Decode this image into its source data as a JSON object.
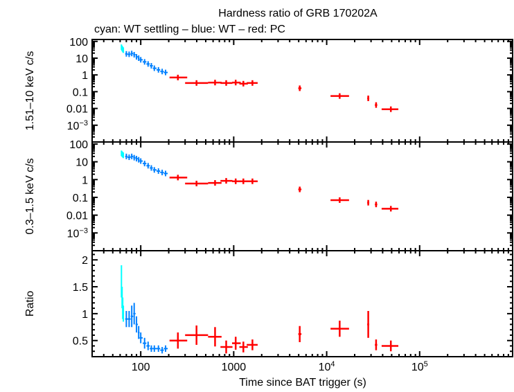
{
  "chart_data": {
    "type": "scatter",
    "title": "Hardness ratio of GRB 170202A",
    "subtitle": "cyan: WT settling – blue: WT – red: PC",
    "xlabel": "Time since BAT trigger (s)",
    "xscale": "log",
    "xlim": [
      30,
      1000000
    ],
    "xticks": [
      {
        "v": 100,
        "label": "100"
      },
      {
        "v": 1000,
        "label": "1000"
      },
      {
        "v": 10000,
        "label": "10",
        "sup": "4"
      },
      {
        "v": 100000,
        "label": "10",
        "sup": "5"
      }
    ],
    "colors": {
      "WT settling": "#00ffff",
      "WT": "#0080ff",
      "PC": "#ff0000"
    },
    "panels": [
      {
        "key": "hard",
        "ylabel": "1.51–10 keV c/s",
        "yscale": "log",
        "ylim": [
          0.0001,
          130
        ],
        "yticks": [
          {
            "v": 100,
            "label": "100"
          },
          {
            "v": 10,
            "label": "10"
          },
          {
            "v": 1,
            "label": "1"
          },
          {
            "v": 0.1,
            "label": "0.1"
          },
          {
            "v": 0.01,
            "label": "0.01"
          },
          {
            "v": 0.001,
            "label": "10",
            "sup": "−3"
          }
        ]
      },
      {
        "key": "soft",
        "ylabel": "0.3–1.5 keV c/s",
        "yscale": "log",
        "ylim": [
          0.0001,
          130
        ],
        "yticks": [
          {
            "v": 100,
            "label": "100"
          },
          {
            "v": 10,
            "label": "10"
          },
          {
            "v": 1,
            "label": "1"
          },
          {
            "v": 0.1,
            "label": "0.1"
          },
          {
            "v": 0.01,
            "label": "0.01"
          },
          {
            "v": 0.001,
            "label": "10",
            "sup": "−3"
          }
        ]
      },
      {
        "key": "ratio",
        "ylabel": "Ratio",
        "yscale": "linear",
        "ylim": [
          0.2,
          2.17
        ],
        "yticks": [
          {
            "v": 2,
            "label": "2"
          },
          {
            "v": 1.5,
            "label": "1.5"
          },
          {
            "v": 1,
            "label": "1"
          },
          {
            "v": 0.5,
            "label": "0.5"
          }
        ]
      }
    ],
    "series": [
      {
        "name": "WT settling",
        "x": [
          62,
          63,
          64,
          65
        ],
        "xlo": [
          61.5,
          62.5,
          63.5,
          64.5
        ],
        "xhi": [
          62.5,
          63.5,
          64.5,
          65.5
        ],
        "hard": [
          45,
          38,
          33,
          30
        ],
        "soft": [
          30,
          27,
          25,
          23
        ],
        "ratio": [
          1.6,
          1.3,
          1.1,
          1.0
        ],
        "ratio_err": [
          0.3,
          0.2,
          0.2,
          0.15
        ]
      },
      {
        "name": "WT",
        "x": [
          70,
          75,
          80,
          85,
          90,
          95,
          100,
          110,
          120,
          130,
          140,
          155,
          170,
          185
        ],
        "xlo": [
          68,
          72,
          78,
          83,
          88,
          93,
          97,
          105,
          115,
          125,
          135,
          148,
          162,
          177
        ],
        "xhi": [
          72,
          78,
          83,
          88,
          93,
          97,
          105,
          115,
          125,
          135,
          148,
          162,
          177,
          195
        ],
        "hard": [
          18,
          17,
          19,
          16,
          12,
          10,
          8,
          6,
          4.5,
          3.5,
          2.5,
          2,
          1.6,
          1.4
        ],
        "soft": [
          20,
          18,
          20,
          17,
          15,
          13,
          11,
          8,
          6,
          4.5,
          3.5,
          3,
          2.5,
          2.2
        ],
        "ratio": [
          0.9,
          0.9,
          0.95,
          1.0,
          0.8,
          0.65,
          0.55,
          0.45,
          0.4,
          0.35,
          0.35,
          0.35,
          0.32,
          0.35
        ],
        "ratio_err": [
          0.15,
          0.15,
          0.2,
          0.2,
          0.15,
          0.12,
          0.1,
          0.1,
          0.08,
          0.06,
          0.06,
          0.06,
          0.06,
          0.06
        ]
      },
      {
        "name": "PC",
        "x": [
          251,
          398,
          630,
          830,
          1050,
          1270,
          1590,
          5130,
          13800,
          28000,
          34000,
          49000
        ],
        "xlo": [
          204,
          300,
          530,
          720,
          960,
          1150,
          1380,
          4950,
          11000,
          27300,
          33000,
          39000
        ],
        "xhi": [
          316,
          530,
          740,
          970,
          1190,
          1420,
          1810,
          5350,
          17400,
          28700,
          35000,
          59000
        ],
        "hard": [
          0.7,
          0.33,
          0.35,
          0.33,
          0.35,
          0.3,
          0.33,
          0.16,
          0.055,
          0.04,
          0.016,
          0.009
        ],
        "soft": [
          1.3,
          0.6,
          0.65,
          0.85,
          0.8,
          0.8,
          0.8,
          0.28,
          0.07,
          0.05,
          0.04,
          0.023
        ],
        "ratio": [
          0.5,
          0.6,
          0.57,
          0.38,
          0.45,
          0.38,
          0.42,
          0.62,
          0.72,
          0.8,
          0.42,
          0.4
        ],
        "ratio_err": [
          0.15,
          0.18,
          0.18,
          0.12,
          0.12,
          0.1,
          0.1,
          0.15,
          0.15,
          0.25,
          0.1,
          0.1
        ]
      }
    ]
  }
}
